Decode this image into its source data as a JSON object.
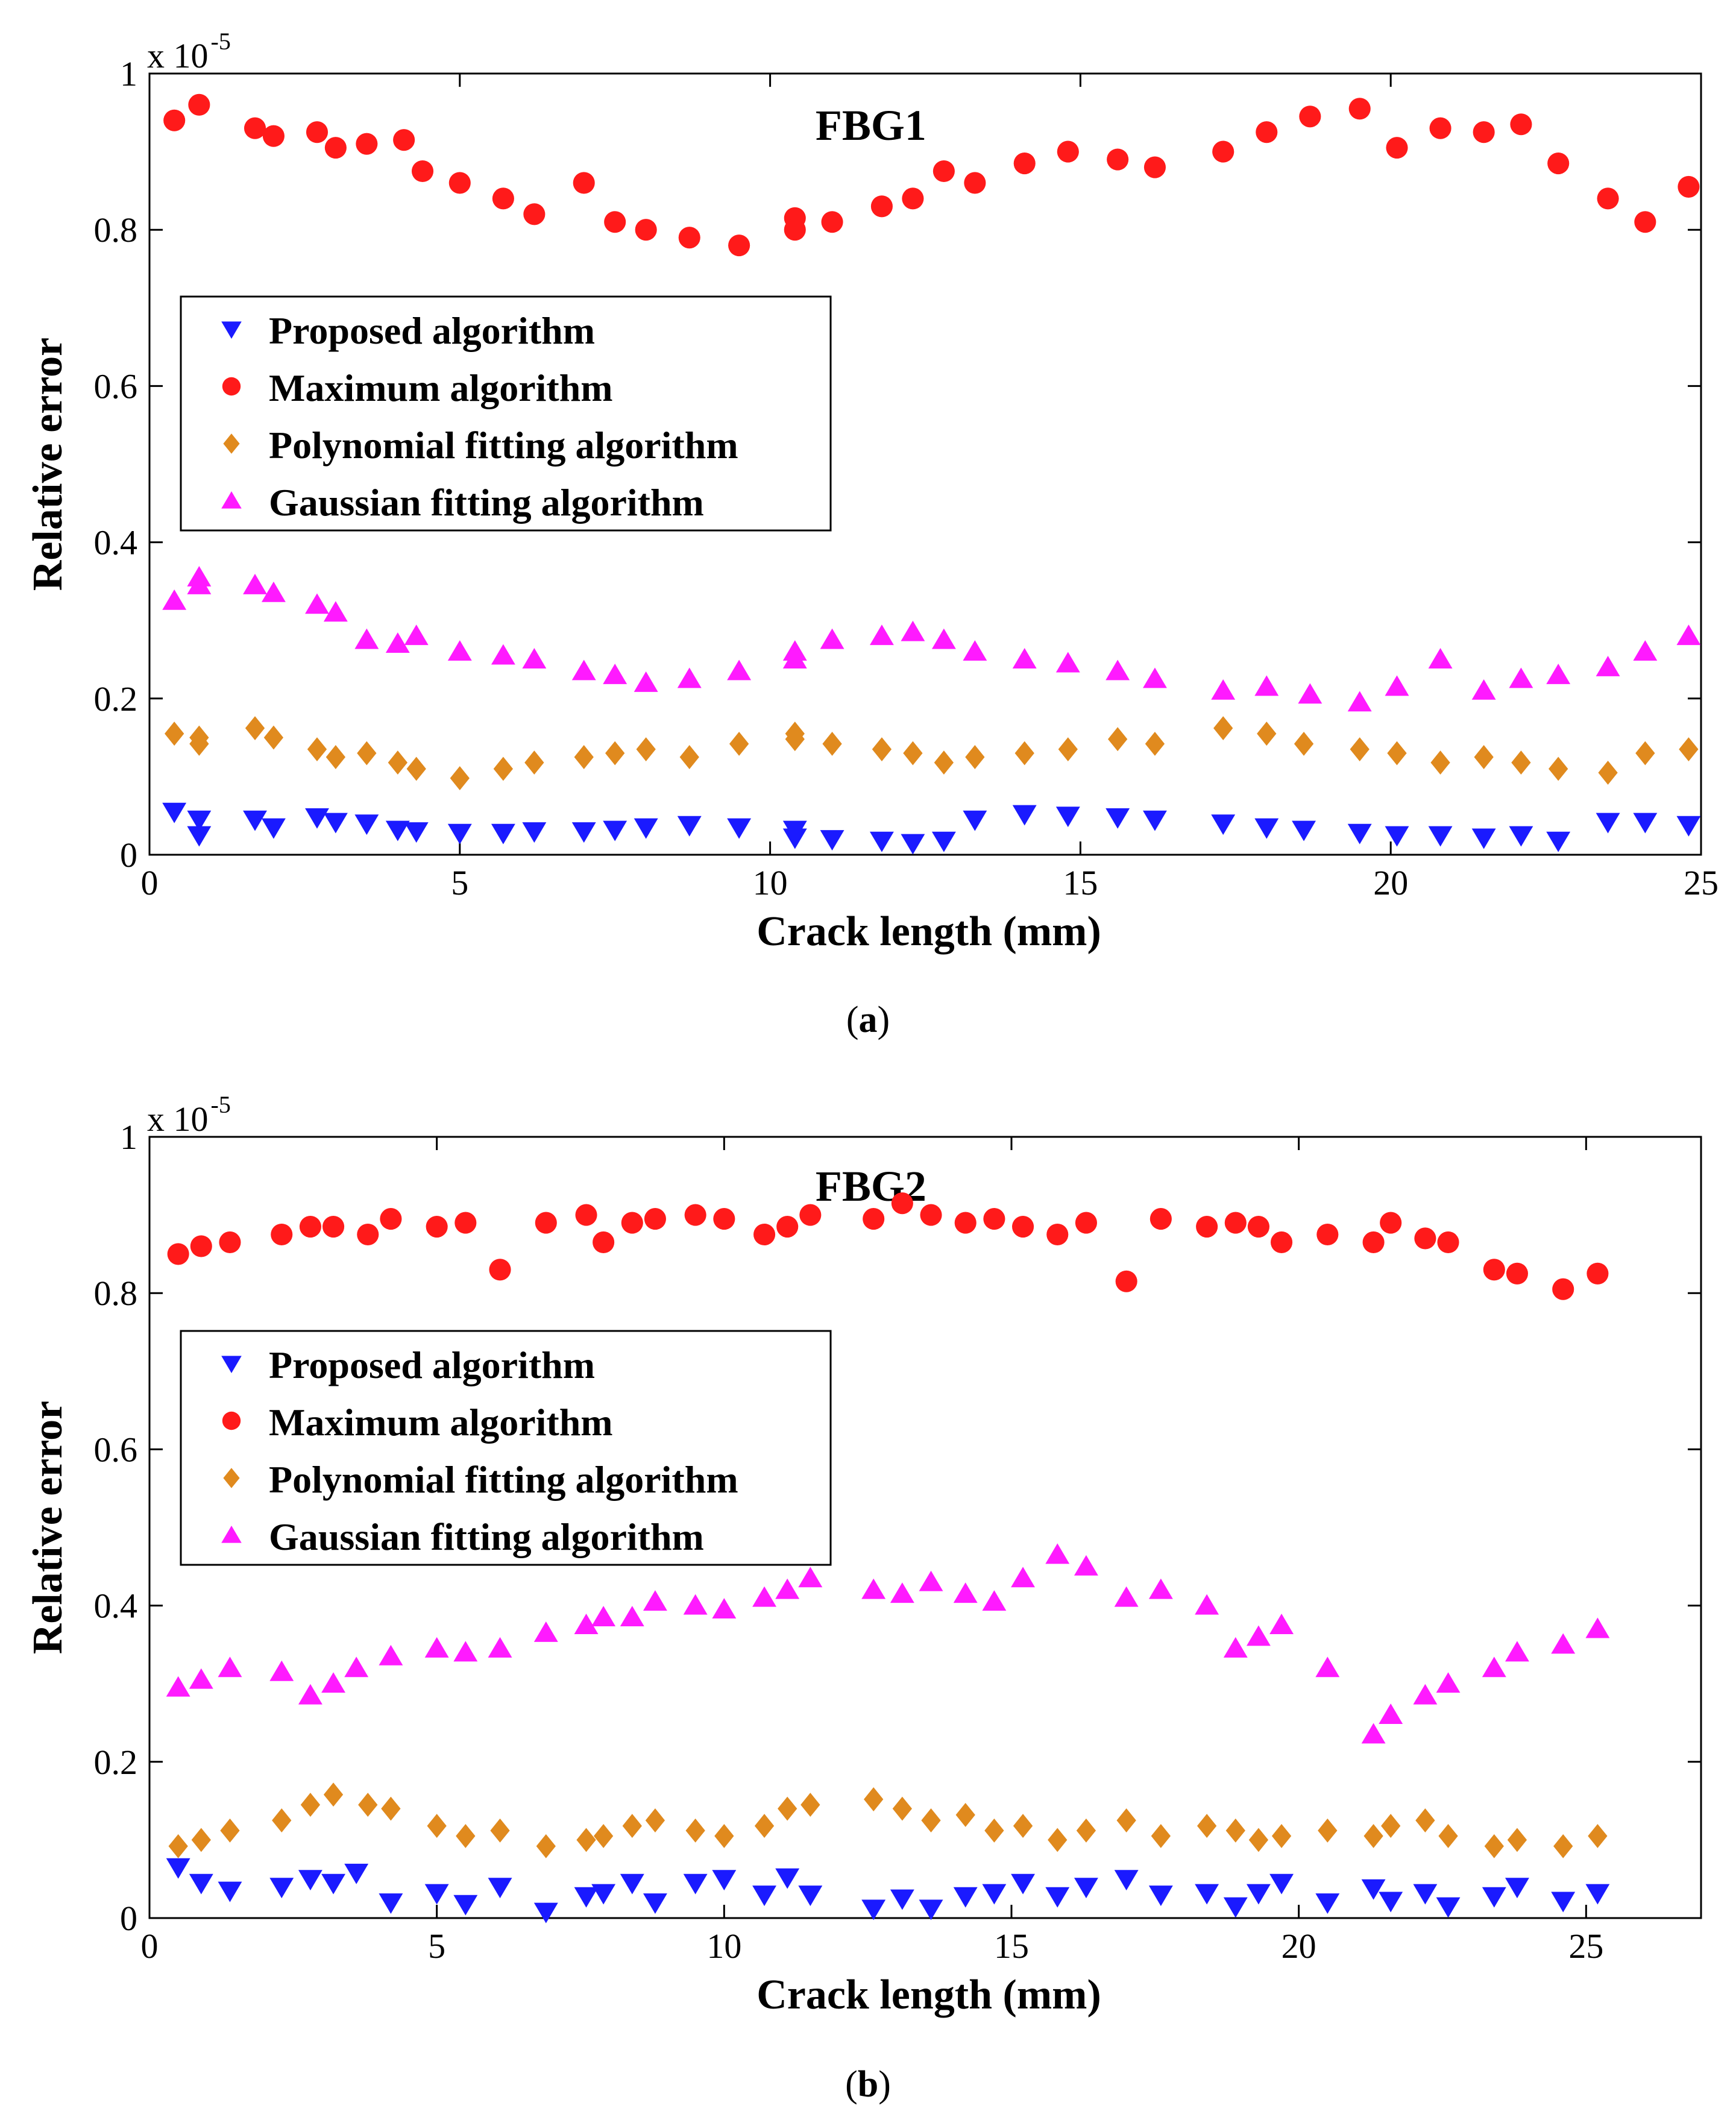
{
  "figure": {
    "colors": {
      "proposed": "#1a1aff",
      "maximum": "#ff1a1a",
      "polynomial": "#e08a1e",
      "gaussian": "#ff1aff"
    },
    "marker_icons": {
      "proposed": "triangle-down-icon",
      "maximum": "circle-icon",
      "polynomial": "diamond-icon",
      "gaussian": "triangle-up-icon"
    }
  },
  "chart_data": [
    {
      "type": "scatter",
      "title": "FBG1",
      "caption_open": "(",
      "caption_letter": "a",
      "caption_close": ")",
      "xlabel": "Crack length (mm)",
      "ylabel": "Relative error",
      "y_multiplier_base": "x 10",
      "y_multiplier_exp": "-5",
      "xlim": [
        0,
        25
      ],
      "ylim": [
        0,
        1
      ],
      "xticks": [
        0,
        5,
        10,
        15,
        20,
        25
      ],
      "yticks": [
        0,
        0.2,
        0.4,
        0.6,
        0.8,
        1
      ],
      "ytick_labels": [
        "0",
        "0.2",
        "0.4",
        "0.6",
        "0.8",
        "1"
      ],
      "legend_position": "upper-left",
      "grid": false,
      "series": [
        {
          "key": "proposed",
          "name": "Proposed algorithm",
          "x": [
            0.4,
            0.8,
            0.8,
            1.7,
            2.0,
            2.7,
            3.0,
            3.5,
            4.0,
            4.3,
            5.0,
            5.7,
            6.2,
            7.0,
            7.5,
            8.0,
            8.7,
            9.5,
            10.4,
            10.4,
            11.0,
            11.8,
            12.3,
            12.8,
            13.3,
            14.1,
            14.8,
            15.6,
            16.2,
            17.3,
            18.0,
            18.6,
            19.5,
            20.1,
            20.8,
            21.5,
            22.1,
            22.7,
            23.5,
            24.1,
            24.8
          ],
          "y": [
            0.055,
            0.045,
            0.025,
            0.045,
            0.035,
            0.048,
            0.042,
            0.04,
            0.032,
            0.03,
            0.028,
            0.028,
            0.03,
            0.03,
            0.032,
            0.035,
            0.038,
            0.035,
            0.032,
            0.022,
            0.02,
            0.018,
            0.015,
            0.018,
            0.045,
            0.052,
            0.05,
            0.048,
            0.045,
            0.04,
            0.035,
            0.032,
            0.028,
            0.025,
            0.025,
            0.022,
            0.025,
            0.018,
            0.042,
            0.042,
            0.038
          ]
        },
        {
          "key": "maximum",
          "name": "Maximum algorithm",
          "x": [
            0.4,
            0.8,
            1.7,
            2.0,
            2.7,
            3.0,
            3.5,
            4.1,
            4.4,
            5.0,
            5.7,
            6.2,
            7.0,
            7.5,
            8.0,
            8.7,
            9.5,
            10.4,
            10.4,
            11.0,
            11.8,
            12.3,
            12.8,
            13.3,
            14.1,
            14.8,
            15.6,
            16.2,
            17.3,
            18.0,
            18.7,
            19.5,
            20.1,
            20.8,
            21.5,
            22.1,
            22.7,
            23.5,
            24.1,
            24.8
          ],
          "y": [
            0.94,
            0.96,
            0.93,
            0.92,
            0.925,
            0.905,
            0.91,
            0.915,
            0.875,
            0.86,
            0.84,
            0.82,
            0.86,
            0.81,
            0.8,
            0.79,
            0.78,
            0.815,
            0.8,
            0.81,
            0.83,
            0.84,
            0.875,
            0.86,
            0.885,
            0.9,
            0.89,
            0.88,
            0.9,
            0.925,
            0.945,
            0.955,
            0.905,
            0.93,
            0.925,
            0.935,
            0.885,
            0.84,
            0.81,
            0.855
          ]
        },
        {
          "key": "polynomial",
          "name": "Polynomial fitting algorithm",
          "x": [
            0.4,
            0.8,
            0.8,
            1.7,
            2.0,
            2.7,
            3.0,
            3.5,
            4.0,
            4.3,
            5.0,
            5.7,
            6.2,
            7.0,
            7.5,
            8.0,
            8.7,
            9.5,
            10.4,
            10.4,
            11.0,
            11.8,
            12.3,
            12.8,
            13.3,
            14.1,
            14.8,
            15.6,
            16.2,
            17.3,
            18.0,
            18.6,
            19.5,
            20.1,
            20.8,
            21.5,
            22.1,
            22.7,
            23.5,
            24.1,
            24.8
          ],
          "y": [
            0.155,
            0.15,
            0.142,
            0.162,
            0.15,
            0.135,
            0.125,
            0.13,
            0.118,
            0.11,
            0.098,
            0.11,
            0.118,
            0.125,
            0.13,
            0.135,
            0.125,
            0.142,
            0.155,
            0.148,
            0.142,
            0.135,
            0.13,
            0.118,
            0.125,
            0.13,
            0.135,
            0.148,
            0.142,
            0.162,
            0.155,
            0.142,
            0.135,
            0.13,
            0.118,
            0.125,
            0.118,
            0.11,
            0.105,
            0.13,
            0.135
          ]
        },
        {
          "key": "gaussian",
          "name": "Gaussian fitting algorithm",
          "x": [
            0.4,
            0.8,
            0.8,
            1.7,
            2.0,
            2.7,
            3.0,
            3.5,
            4.0,
            4.3,
            5.0,
            5.7,
            6.2,
            7.0,
            7.5,
            8.0,
            8.7,
            9.5,
            10.4,
            10.4,
            11.0,
            11.8,
            12.3,
            12.8,
            13.3,
            14.1,
            14.8,
            15.6,
            16.2,
            17.3,
            18.0,
            18.7,
            19.5,
            20.1,
            20.8,
            21.5,
            22.1,
            22.7,
            23.5,
            24.1,
            24.8
          ],
          "y": [
            0.325,
            0.355,
            0.345,
            0.345,
            0.335,
            0.32,
            0.31,
            0.275,
            0.27,
            0.28,
            0.26,
            0.255,
            0.25,
            0.235,
            0.23,
            0.22,
            0.225,
            0.235,
            0.26,
            0.25,
            0.275,
            0.28,
            0.285,
            0.275,
            0.26,
            0.25,
            0.245,
            0.235,
            0.225,
            0.21,
            0.215,
            0.205,
            0.195,
            0.215,
            0.25,
            0.21,
            0.225,
            0.23,
            0.24,
            0.26,
            0.28
          ]
        }
      ]
    },
    {
      "type": "scatter",
      "title": "FBG2",
      "caption_open": "(",
      "caption_letter": "b",
      "caption_close": ")",
      "xlabel": "Crack length (mm)",
      "ylabel": "Relative error",
      "y_multiplier_base": "x 10",
      "y_multiplier_exp": "-5",
      "xlim": [
        0,
        27
      ],
      "ylim": [
        0,
        1
      ],
      "xticks": [
        0,
        5,
        10,
        15,
        20,
        25
      ],
      "yticks": [
        0,
        0.2,
        0.4,
        0.6,
        0.8,
        1
      ],
      "ytick_labels": [
        "0",
        "0.2",
        "0.4",
        "0.6",
        "0.8",
        "1"
      ],
      "legend_position": "upper-left",
      "grid": false,
      "series": [
        {
          "key": "proposed",
          "name": "Proposed algorithm",
          "x": [
            0.5,
            0.9,
            1.4,
            2.3,
            2.8,
            3.2,
            3.6,
            4.2,
            5.0,
            5.5,
            6.1,
            6.9,
            7.6,
            7.9,
            8.4,
            8.8,
            9.5,
            10.0,
            10.7,
            11.1,
            11.5,
            12.6,
            13.1,
            13.6,
            14.2,
            14.7,
            15.2,
            15.8,
            16.3,
            17.0,
            17.6,
            18.4,
            18.9,
            19.3,
            19.7,
            20.5,
            21.3,
            21.6,
            22.2,
            22.6,
            23.4,
            23.8,
            24.6,
            25.2
          ],
          "y": [
            0.065,
            0.045,
            0.035,
            0.04,
            0.05,
            0.045,
            0.058,
            0.02,
            0.032,
            0.018,
            0.04,
            0.008,
            0.028,
            0.032,
            0.045,
            0.02,
            0.045,
            0.05,
            0.03,
            0.052,
            0.03,
            0.012,
            0.025,
            0.012,
            0.028,
            0.032,
            0.045,
            0.028,
            0.04,
            0.05,
            0.03,
            0.032,
            0.015,
            0.032,
            0.045,
            0.02,
            0.038,
            0.022,
            0.032,
            0.015,
            0.028,
            0.04,
            0.022,
            0.032
          ]
        },
        {
          "key": "maximum",
          "name": "Maximum algorithm",
          "x": [
            0.5,
            0.9,
            1.4,
            2.3,
            2.8,
            3.2,
            3.8,
            4.2,
            5.0,
            5.5,
            6.1,
            6.9,
            7.6,
            7.9,
            8.4,
            8.8,
            9.5,
            10.0,
            10.7,
            11.1,
            11.5,
            12.6,
            13.1,
            13.6,
            14.2,
            14.7,
            15.2,
            15.8,
            16.3,
            17.0,
            17.6,
            18.4,
            18.9,
            19.3,
            19.7,
            20.5,
            21.3,
            21.6,
            22.2,
            22.6,
            23.4,
            23.8,
            24.6,
            25.2
          ],
          "y": [
            0.85,
            0.86,
            0.865,
            0.875,
            0.885,
            0.885,
            0.875,
            0.895,
            0.885,
            0.89,
            0.83,
            0.89,
            0.9,
            0.865,
            0.89,
            0.895,
            0.9,
            0.895,
            0.875,
            0.885,
            0.9,
            0.895,
            0.915,
            0.9,
            0.89,
            0.895,
            0.885,
            0.875,
            0.89,
            0.815,
            0.895,
            0.885,
            0.89,
            0.885,
            0.865,
            0.875,
            0.865,
            0.89,
            0.87,
            0.865,
            0.83,
            0.825,
            0.805,
            0.825
          ]
        },
        {
          "key": "polynomial",
          "name": "Polynomial fitting algorithm",
          "x": [
            0.5,
            0.9,
            1.4,
            2.3,
            2.8,
            3.2,
            3.8,
            4.2,
            5.0,
            5.5,
            6.1,
            6.9,
            7.6,
            7.9,
            8.4,
            8.8,
            9.5,
            10.0,
            10.7,
            11.1,
            11.5,
            12.6,
            13.1,
            13.6,
            14.2,
            14.7,
            15.2,
            15.8,
            16.3,
            17.0,
            17.6,
            18.4,
            18.9,
            19.3,
            19.7,
            20.5,
            21.3,
            21.6,
            22.2,
            22.6,
            23.4,
            23.8,
            24.6,
            25.2
          ],
          "y": [
            0.092,
            0.1,
            0.112,
            0.125,
            0.145,
            0.158,
            0.145,
            0.14,
            0.118,
            0.105,
            0.112,
            0.092,
            0.1,
            0.105,
            0.118,
            0.125,
            0.112,
            0.105,
            0.118,
            0.14,
            0.145,
            0.152,
            0.14,
            0.125,
            0.132,
            0.112,
            0.118,
            0.1,
            0.112,
            0.125,
            0.105,
            0.118,
            0.112,
            0.1,
            0.105,
            0.112,
            0.105,
            0.118,
            0.125,
            0.105,
            0.092,
            0.1,
            0.092,
            0.105
          ]
        },
        {
          "key": "gaussian",
          "name": "Gaussian fitting algorithm",
          "x": [
            0.5,
            0.9,
            1.4,
            2.3,
            2.8,
            3.2,
            3.6,
            4.2,
            5.0,
            5.5,
            6.1,
            6.9,
            7.6,
            7.9,
            8.4,
            8.8,
            9.5,
            10.0,
            10.7,
            11.1,
            11.5,
            12.6,
            13.1,
            13.6,
            14.2,
            14.7,
            15.2,
            15.8,
            16.3,
            17.0,
            17.6,
            18.4,
            18.9,
            19.3,
            19.7,
            20.5,
            21.3,
            21.6,
            22.2,
            22.6,
            23.4,
            23.8,
            24.6,
            25.2
          ],
          "y": [
            0.295,
            0.305,
            0.32,
            0.315,
            0.285,
            0.3,
            0.32,
            0.335,
            0.345,
            0.34,
            0.345,
            0.365,
            0.375,
            0.385,
            0.385,
            0.405,
            0.4,
            0.395,
            0.41,
            0.42,
            0.435,
            0.42,
            0.415,
            0.43,
            0.415,
            0.405,
            0.435,
            0.465,
            0.45,
            0.41,
            0.42,
            0.4,
            0.345,
            0.36,
            0.375,
            0.32,
            0.235,
            0.26,
            0.285,
            0.3,
            0.32,
            0.34,
            0.35,
            0.37
          ]
        }
      ]
    }
  ]
}
